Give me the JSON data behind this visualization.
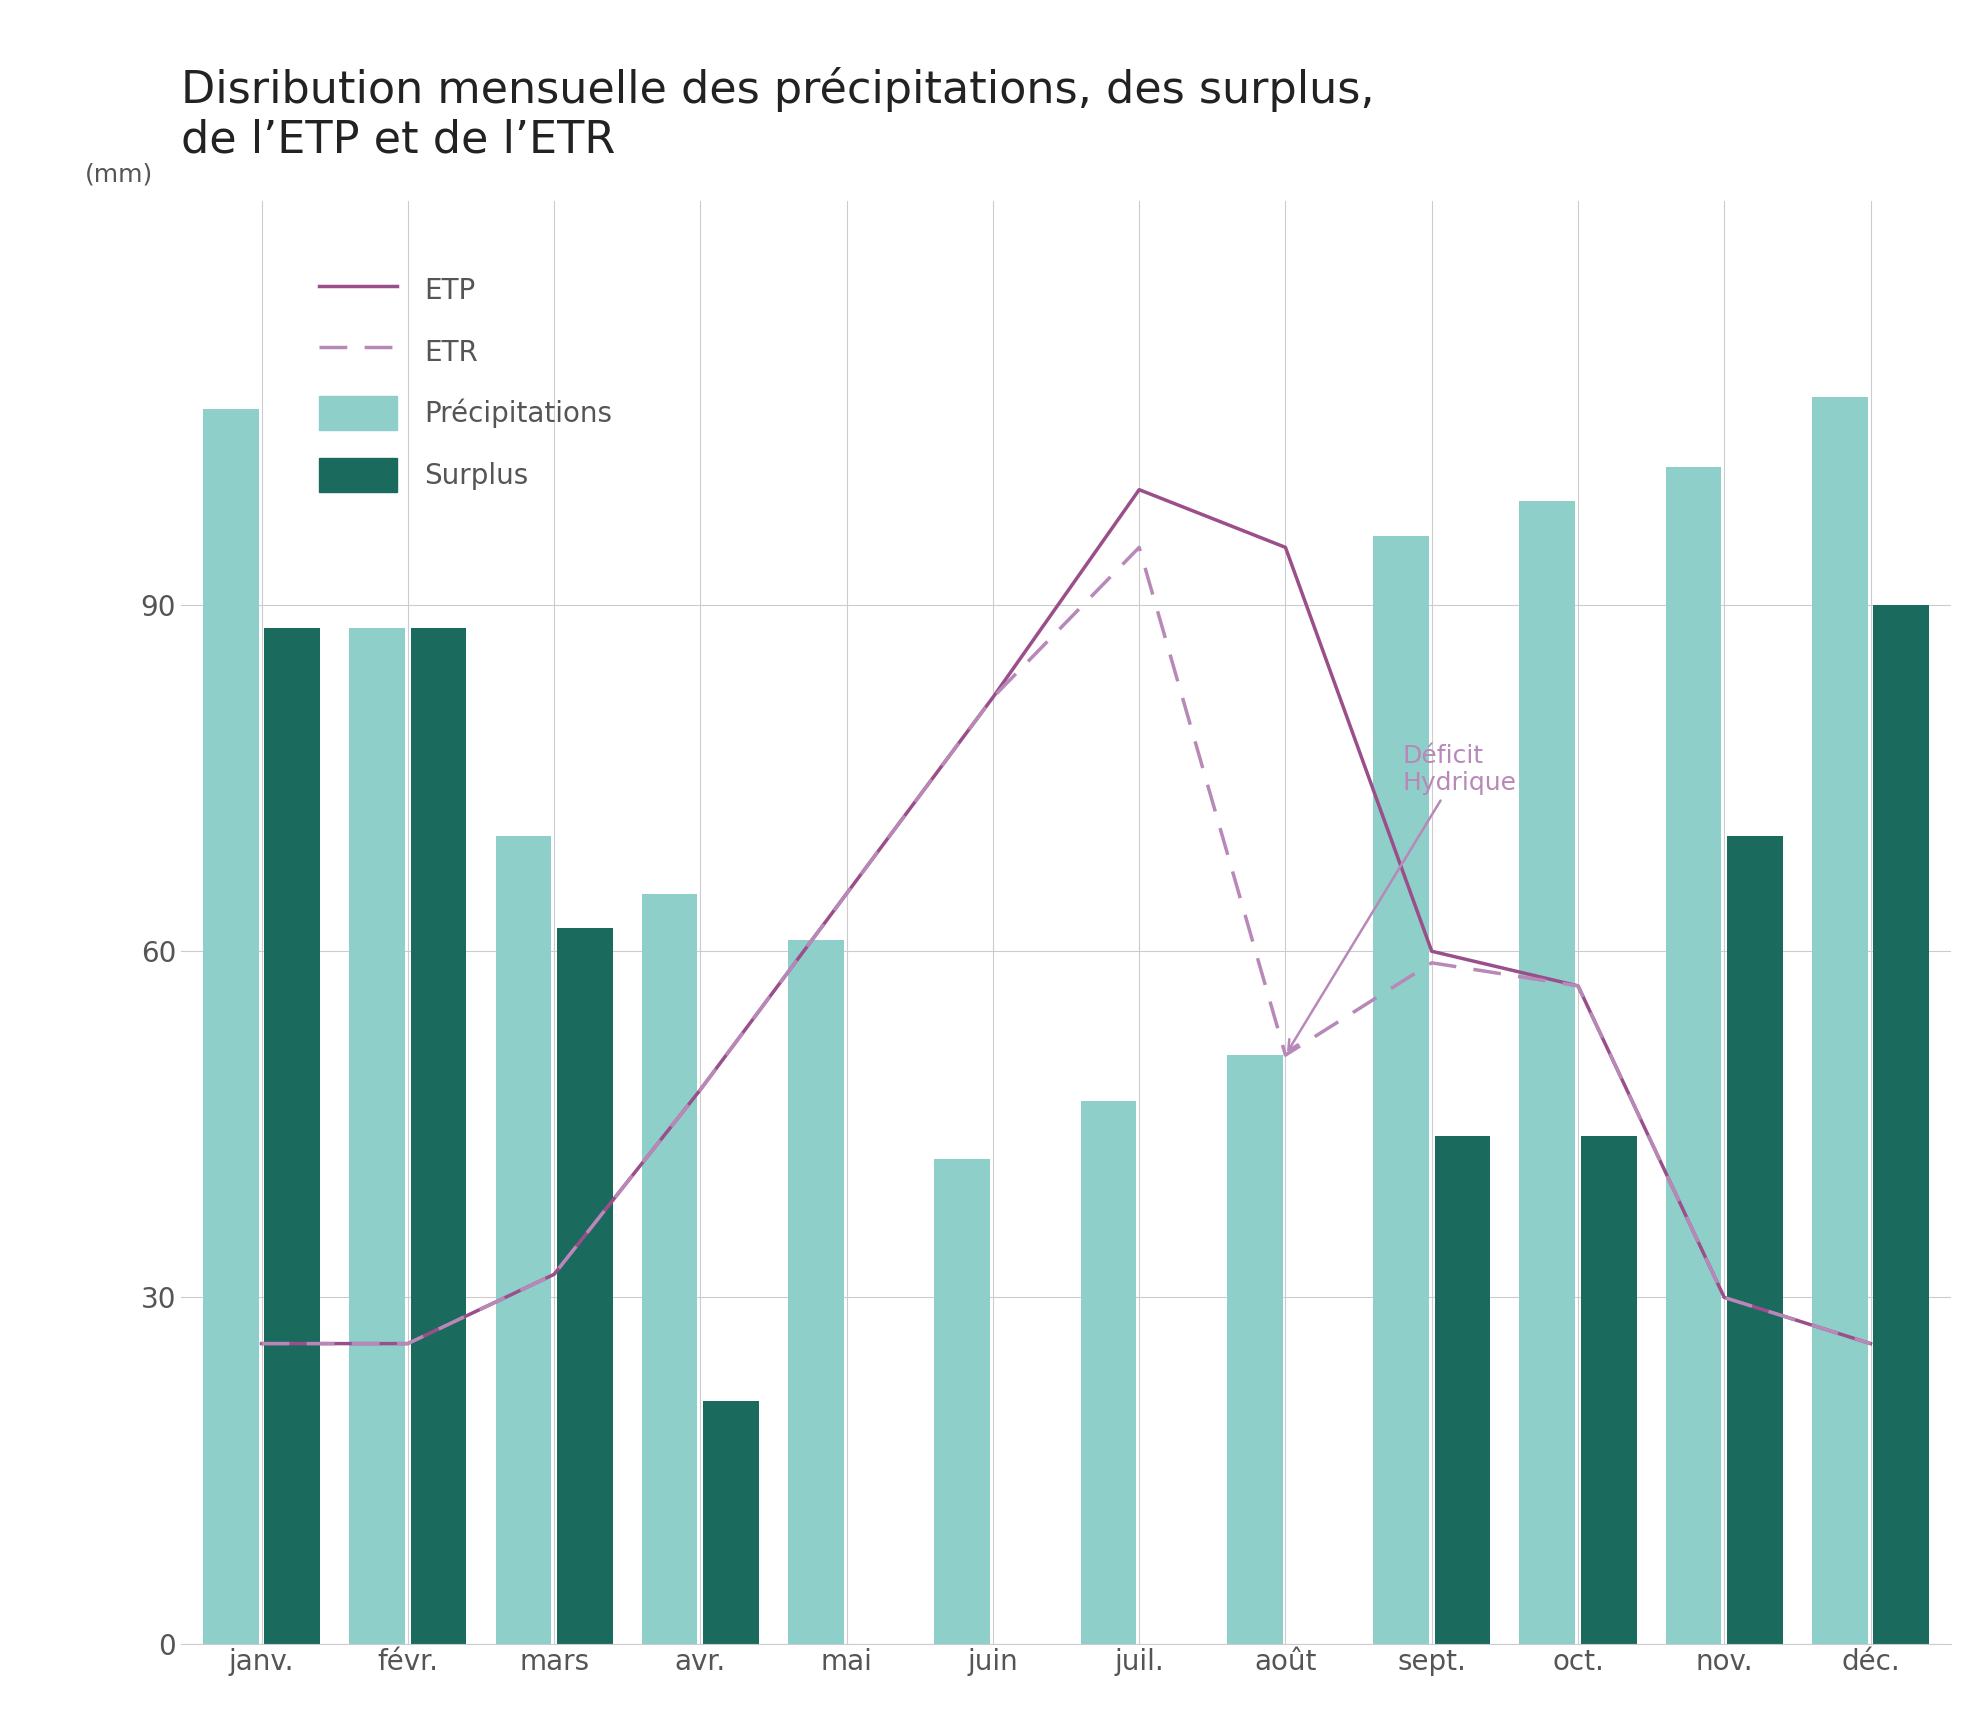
{
  "title": "Disribution mensuelle des précipitations, des surplus,\nde l’ETP et de l’ETR",
  "ylabel": "(mm)",
  "months": [
    "janv.",
    "févr.",
    "mars",
    "avr.",
    "mai",
    "juin",
    "juil.",
    "août",
    "sept.",
    "oct.",
    "nov.",
    "déc."
  ],
  "precipitations": [
    107,
    88,
    70,
    65,
    61,
    42,
    47,
    51,
    96,
    99,
    102,
    108
  ],
  "surplus": [
    88,
    88,
    62,
    21,
    0,
    0,
    0,
    0,
    44,
    44,
    70,
    90
  ],
  "etp": [
    26,
    26,
    32,
    48,
    65,
    82,
    100,
    95,
    60,
    57,
    30,
    26
  ],
  "etr": [
    26,
    26,
    32,
    48,
    65,
    82,
    95,
    51,
    59,
    57,
    30,
    26
  ],
  "precip_color": "#8ecfc9",
  "surplus_color": "#1a6b5e",
  "etp_color": "#9b4f8a",
  "etr_color": "#b888b8",
  "annotation_color": "#b888b8",
  "background_color": "#ffffff",
  "grid_color": "#cccccc",
  "yticks": [
    0,
    30,
    60,
    90
  ],
  "ylim": [
    0,
    125
  ],
  "xlim_left": -0.55,
  "xlim_right": 11.55,
  "title_fontsize": 32,
  "axis_label_fontsize": 18,
  "tick_fontsize": 20,
  "legend_fontsize": 20,
  "bar_width": 0.38,
  "bar_gap": 0.04,
  "etp_linewidth": 2.5,
  "etr_linewidth": 2.5
}
